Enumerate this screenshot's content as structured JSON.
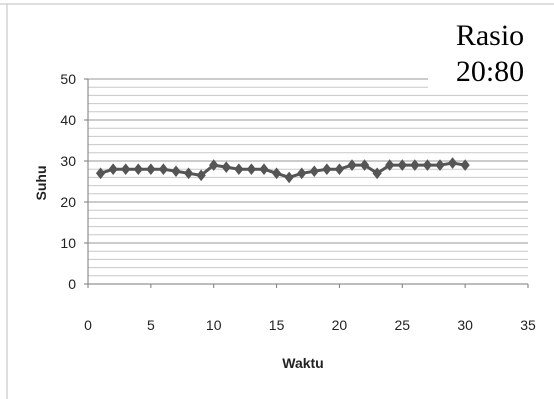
{
  "chart_data": {
    "type": "line",
    "title_lines": [
      "Rasio",
      "20:80"
    ],
    "xlabel": "Waktu",
    "ylabel": "Suhu",
    "xlim": [
      0,
      35
    ],
    "ylim": [
      0,
      50
    ],
    "x_ticks": [
      "0",
      "5",
      "10",
      "15",
      "20",
      "25",
      "30",
      "35"
    ],
    "y_ticks": [
      "0",
      "10",
      "20",
      "30",
      "40",
      "50"
    ],
    "grid": true,
    "legend": "none",
    "series": [
      {
        "color": "#555555",
        "x": [
          1,
          2,
          3,
          4,
          5,
          6,
          7,
          8,
          9,
          10,
          11,
          12,
          13,
          14,
          15,
          16,
          17,
          18,
          19,
          20,
          21,
          22,
          23,
          24,
          25,
          26,
          27,
          28,
          29,
          30
        ],
        "y": [
          27,
          28,
          28,
          28,
          28,
          28,
          27.5,
          27,
          26.5,
          29,
          28.5,
          28,
          28,
          28,
          27,
          26,
          27,
          27.5,
          28,
          28,
          29,
          29,
          27,
          29,
          29,
          29,
          29,
          29,
          29.5,
          29
        ]
      }
    ]
  }
}
